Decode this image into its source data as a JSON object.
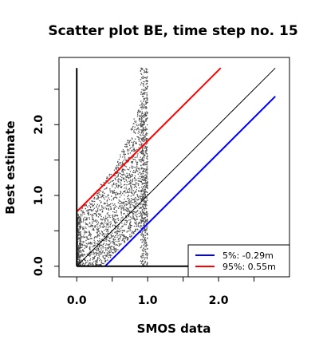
{
  "chart_data": {
    "type": "scatter",
    "title": "Scatter plot BE, time step no. 15",
    "xlabel": "SMOS data",
    "ylabel": "Best estimate",
    "xlim": [
      -0.25,
      3.0
    ],
    "ylim": [
      -0.15,
      2.95
    ],
    "x_ticks": [
      0.0,
      0.5,
      1.0,
      1.5,
      2.0,
      2.5
    ],
    "x_tick_labels": [
      "0.0",
      "",
      "1.0",
      "",
      "2.0",
      ""
    ],
    "y_ticks": [
      0.0,
      0.5,
      1.0,
      1.5,
      2.0,
      2.5
    ],
    "y_tick_labels": [
      "0.0",
      "",
      "1.0",
      "",
      "2.0",
      ""
    ],
    "grid": false,
    "legend_position": "bottom-right",
    "point_color": "#4d4d4d",
    "scatter_extent": {
      "x_range": [
        0.0,
        1.0
      ],
      "y_range": [
        0.0,
        2.8
      ],
      "dense_columns_near_x": [
        0.0,
        1.0
      ]
    },
    "series": [
      {
        "name": "",
        "kind": "reference",
        "color": "#000000",
        "x": [
          0.0,
          2.8
        ],
        "y": [
          0.0,
          2.8
        ]
      },
      {
        "name": "5%: -0.29m",
        "kind": "quantile",
        "color": "#0000ff",
        "x": [
          0.4,
          2.8
        ],
        "y": [
          0.0,
          2.4
        ]
      },
      {
        "name": "95%:  0.55m",
        "kind": "quantile",
        "color": "#ff0000",
        "x": [
          0.0,
          2.03
        ],
        "y": [
          0.77,
          2.8
        ]
      }
    ],
    "legend": [
      {
        "label": "5%: -0.29m",
        "color": "#0000ff"
      },
      {
        "label": "95%:  0.55m",
        "color": "#ff0000"
      }
    ]
  }
}
